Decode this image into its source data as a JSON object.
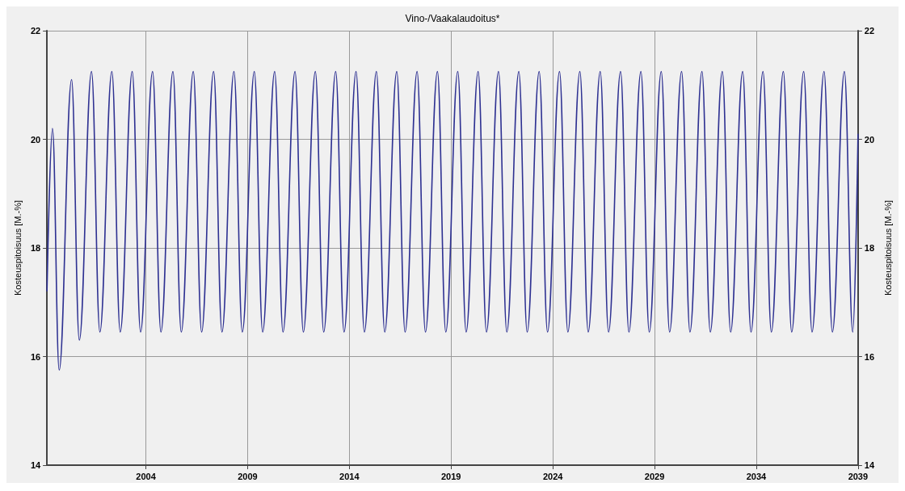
{
  "chart_data": {
    "type": "line",
    "title": "Vino-/Vaakalaudoitus*",
    "ylabel": "Kosteuspitoisuus [M.-%]",
    "y2label": "Kosteuspitoisuus [M.-%]",
    "x": [
      1999.14,
      1999.41,
      1999.74,
      2000.35,
      2000.73,
      2001.33,
      2001.74,
      2002.33,
      2002.74,
      2003.33,
      2003.74,
      2004.33,
      2004.74,
      2005.33,
      2005.74,
      2006.33,
      2006.74,
      2007.33,
      2007.74,
      2008.33,
      2008.74,
      2009.33,
      2009.74,
      2010.33,
      2010.74,
      2011.33,
      2011.74,
      2012.33,
      2012.74,
      2013.33,
      2013.74,
      2014.33,
      2014.74,
      2015.33,
      2015.74,
      2016.33,
      2016.74,
      2017.33,
      2017.74,
      2018.33,
      2018.74,
      2019.33,
      2019.74,
      2020.33,
      2020.74,
      2021.33,
      2021.74,
      2022.33,
      2022.74,
      2023.33,
      2023.74,
      2024.33,
      2024.74,
      2025.33,
      2025.74,
      2026.33,
      2026.74,
      2027.33,
      2027.74,
      2028.33,
      2028.74,
      2029.33,
      2029.74,
      2030.33,
      2030.74,
      2031.33,
      2031.74,
      2032.33,
      2032.74,
      2033.33,
      2033.74,
      2034.33,
      2034.74,
      2035.33,
      2035.74,
      2036.33,
      2036.74,
      2037.33,
      2037.74,
      2038.33,
      2038.74,
      2039.0
    ],
    "series": [
      {
        "color": "#2e3192",
        "values": [
          17.2,
          20.2,
          15.75,
          21.1,
          16.3,
          21.25,
          16.45,
          21.25,
          16.45,
          21.25,
          16.45,
          21.25,
          16.45,
          21.25,
          16.45,
          21.25,
          16.45,
          21.25,
          16.45,
          21.25,
          16.45,
          21.25,
          16.45,
          21.25,
          16.45,
          21.25,
          16.45,
          21.25,
          16.45,
          21.25,
          16.45,
          21.25,
          16.45,
          21.25,
          16.45,
          21.25,
          16.45,
          21.25,
          16.45,
          21.25,
          16.45,
          21.25,
          16.45,
          21.25,
          16.45,
          21.25,
          16.45,
          21.25,
          16.45,
          21.25,
          16.45,
          21.25,
          16.45,
          21.25,
          16.45,
          21.25,
          16.45,
          21.25,
          16.45,
          21.25,
          16.45,
          21.25,
          16.45,
          21.25,
          16.45,
          21.25,
          16.45,
          21.25,
          16.45,
          21.25,
          16.45,
          21.25,
          16.45,
          21.25,
          16.45,
          21.25,
          16.45,
          21.25,
          16.45,
          21.25,
          16.45,
          20.1
        ]
      }
    ],
    "xlim": [
      1999.14,
      2039
    ],
    "xticks": [
      2004,
      2009,
      2014,
      2019,
      2024,
      2029,
      2034,
      2039
    ],
    "ylim": [
      14,
      22
    ],
    "yticks": [
      14,
      16,
      18,
      20,
      22
    ],
    "y2lim": [
      14,
      22
    ],
    "y2ticks": [
      14,
      16,
      18,
      20,
      22
    ],
    "grid": true,
    "marker": "none",
    "line_style": "solid"
  }
}
